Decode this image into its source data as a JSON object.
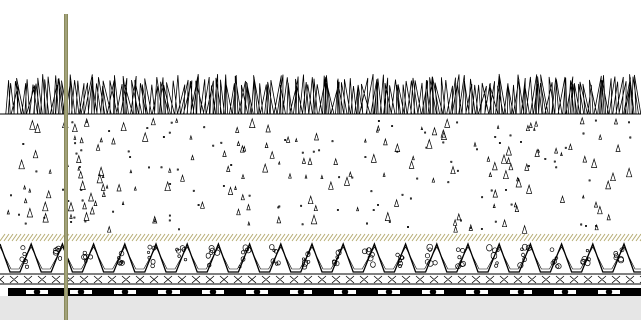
{
  "diagram": {
    "kind": "green-roof-section",
    "layers": [
      {
        "id": "vegetation",
        "pattern": "grass-blades"
      },
      {
        "id": "growing-medium",
        "pattern": "triangle-speckle"
      },
      {
        "id": "filter-fabric",
        "pattern": "diagonal-hatch"
      },
      {
        "id": "drainage-layer",
        "pattern": "zigzag-cups-with-gravel"
      },
      {
        "id": "protection-board",
        "pattern": "cross-hatch-band"
      },
      {
        "id": "membrane",
        "pattern": "dashed-bar-with-dots"
      },
      {
        "id": "substrate",
        "pattern": "solid-fill"
      }
    ],
    "colors": {
      "line": "#000000",
      "accent_post": "#8a8a5c",
      "hatch": "#b7ad74",
      "substrate": "#e6e6e6"
    }
  }
}
